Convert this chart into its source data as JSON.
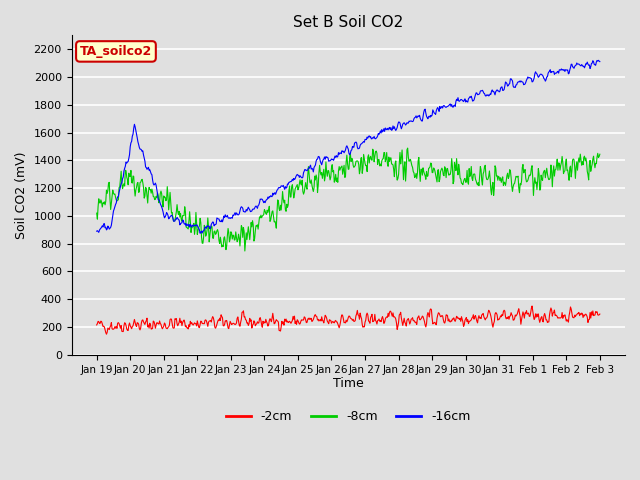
{
  "title": "Set B Soil CO2",
  "ylabel": "Soil CO2 (mV)",
  "xlabel": "Time",
  "annotation": "TA_soilco2",
  "legend": [
    "-2cm",
    "-8cm",
    "-16cm"
  ],
  "legend_colors": [
    "#ff0000",
    "#00cc00",
    "#0000ff"
  ],
  "ylim": [
    0,
    2300
  ],
  "yticks": [
    0,
    200,
    400,
    600,
    800,
    1000,
    1200,
    1400,
    1600,
    1800,
    2000,
    2200
  ],
  "bg_color": "#e0e0e0",
  "plot_bg_color": "#e0e0e0",
  "grid_color": "#ffffff",
  "tick_labels": [
    "Jan 19",
    "Jan 20",
    "Jan 21",
    "Jan 22",
    "Jan 23",
    "Jan 24",
    "Jan 25",
    "Jan 26",
    "Jan 27",
    "Jan 28",
    "Jan 29",
    "Jan 30",
    "Jan 31",
    "Feb 1",
    "Feb 2",
    "Feb 3"
  ],
  "annotation_bg": "#ffffcc",
  "annotation_fg": "#cc0000"
}
